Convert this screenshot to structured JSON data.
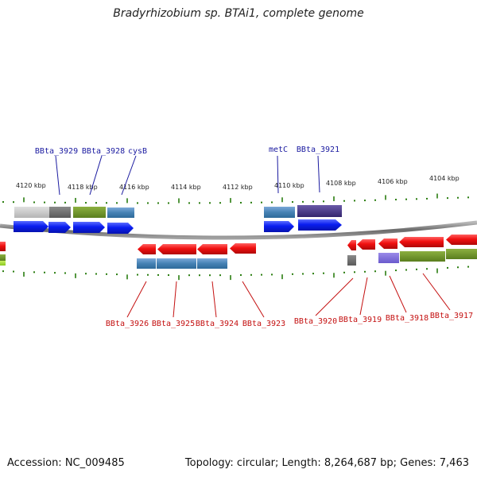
{
  "title": "Bradyrhizobium sp. BTAi1, complete genome",
  "footer": {
    "accession": "Accession: NC_009485",
    "topology": "Topology: circular; Length: 8,264,687 bp; Genes: 7,463"
  },
  "scale_labels": [
    "4120 kbp",
    "4118 kbp",
    "4116 kbp",
    "4114 kbp",
    "4112 kbp",
    "4110 kbp",
    "4108 kbp",
    "4106 kbp",
    "4104 kbp"
  ],
  "genes_top": [
    "BBta_3929",
    "BBta_3928",
    "cysB",
    "metC",
    "BBta_3921"
  ],
  "genes_bottom": [
    "BBta_3926",
    "BBta_3925",
    "BBta_3924",
    "BBta_3923",
    "BBta_3920",
    "BBta_3919",
    "BBta_3918",
    "BBta_3917"
  ],
  "colors": {
    "forward_strand": "#0a1ef0",
    "reverse_strand": "#e00a0a",
    "tick": "#2a7d10",
    "backbone": "#777777",
    "label_top": "#1a1aa0",
    "label_bottom": "#c41010"
  }
}
